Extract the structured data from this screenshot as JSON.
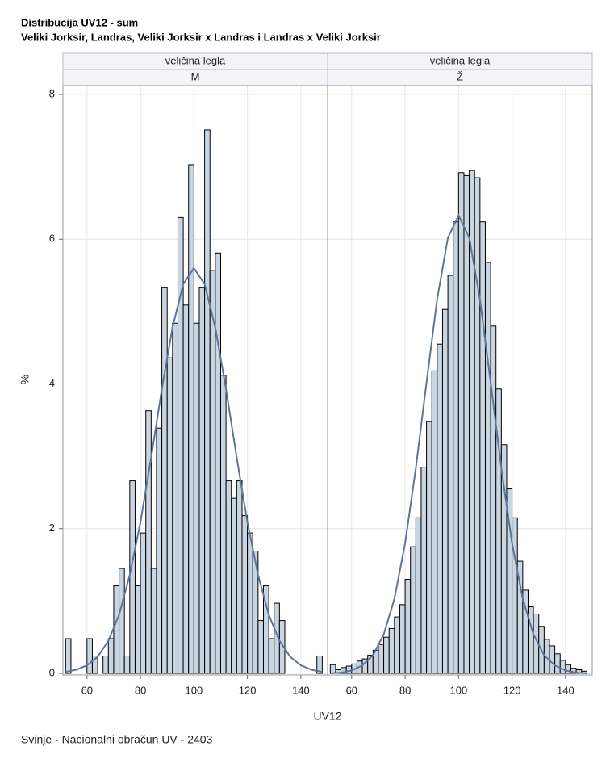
{
  "page": {
    "title": "Distribucija UV12 - sum",
    "subtitle": "Veliki Jorksir, Landras, Veliki Jorksir x Landras i Landras x Veliki Jorksir",
    "xlabel": "UV12",
    "ylabel": "%",
    "footnote": "Svinje - Nacionalni obračun UV - 2403"
  },
  "chart_data": [
    {
      "type": "histogram",
      "panel_header": "veličina legla",
      "panel_value": "M",
      "color": "#cad5e2",
      "curve_color": "#5d7596",
      "bins": [
        52,
        54,
        56,
        58,
        60,
        62,
        64,
        66,
        68,
        70,
        72,
        74,
        76,
        78,
        80,
        82,
        84,
        86,
        88,
        90,
        92,
        94,
        96,
        98,
        100,
        102,
        104,
        106,
        108,
        110,
        112,
        114,
        116,
        118,
        120,
        122,
        124,
        126,
        128,
        130,
        132,
        134,
        136,
        138,
        140,
        142,
        144,
        146,
        148
      ],
      "values": [
        0.48,
        0,
        0,
        0,
        0.48,
        0.24,
        0,
        0.24,
        0.48,
        1.21,
        1.45,
        0.24,
        2.66,
        1.21,
        1.94,
        3.63,
        1.45,
        3.39,
        5.33,
        4.36,
        4.84,
        6.3,
        5.09,
        7.03,
        4.84,
        5.33,
        7.51,
        5.57,
        5.81,
        4.12,
        2.66,
        2.42,
        2.66,
        2.18,
        1.94,
        1.69,
        0.73,
        1.21,
        0.48,
        0.97,
        0.73,
        0,
        0,
        0,
        0,
        0,
        0,
        0.24
      ],
      "curve": {
        "x": [
          52,
          56,
          60,
          64,
          68,
          72,
          76,
          80,
          84,
          88,
          92,
          96,
          100,
          104,
          108,
          112,
          116,
          120,
          124,
          128,
          132,
          136,
          140,
          144,
          148
        ],
        "values": [
          0.02,
          0.05,
          0.11,
          0.23,
          0.45,
          0.81,
          1.36,
          2.09,
          2.98,
          3.93,
          4.78,
          5.38,
          5.6,
          5.38,
          4.78,
          3.93,
          2.98,
          2.09,
          1.36,
          0.81,
          0.45,
          0.23,
          0.11,
          0.05,
          0.02
        ]
      },
      "xlim": [
        51,
        150
      ],
      "xticks": [
        60,
        80,
        100,
        120,
        140
      ],
      "ylim": [
        0,
        8
      ],
      "yticks": [
        0,
        2,
        4,
        6,
        8
      ],
      "grid": true
    },
    {
      "type": "histogram",
      "panel_header": "veličina legla",
      "panel_value": "Ž",
      "color": "#cad5e2",
      "curve_color": "#5d7596",
      "bins": [
        52,
        54,
        56,
        58,
        60,
        62,
        64,
        66,
        68,
        70,
        72,
        74,
        76,
        78,
        80,
        82,
        84,
        86,
        88,
        90,
        92,
        94,
        96,
        98,
        100,
        102,
        104,
        106,
        108,
        110,
        112,
        114,
        116,
        118,
        120,
        122,
        124,
        126,
        128,
        130,
        132,
        134,
        136,
        138,
        140,
        142,
        144,
        146,
        148
      ],
      "values": [
        0.12,
        0.05,
        0.08,
        0.1,
        0.13,
        0.17,
        0.2,
        0.25,
        0.32,
        0.4,
        0.5,
        0.62,
        0.78,
        0.95,
        1.3,
        1.75,
        2.15,
        2.85,
        3.48,
        4.18,
        4.55,
        5.03,
        5.5,
        6.24,
        6.92,
        6.88,
        6.95,
        6.85,
        6.24,
        5.68,
        4.8,
        3.93,
        3.16,
        2.55,
        2.15,
        1.55,
        1.15,
        0.92,
        0.82,
        0.65,
        0.47,
        0.38,
        0.27,
        0.18,
        0.12,
        0.07,
        0.05,
        0.03
      ],
      "curve": {
        "x": [
          52,
          56,
          60,
          64,
          68,
          72,
          76,
          80,
          84,
          88,
          92,
          96,
          100,
          104,
          108,
          112,
          116,
          120,
          124,
          128,
          132,
          136,
          140,
          144,
          148
        ],
        "values": [
          0,
          0.01,
          0.04,
          0.11,
          0.25,
          0.54,
          1.03,
          1.8,
          2.83,
          4.02,
          5.17,
          6.02,
          6.33,
          6.02,
          5.17,
          4.02,
          2.83,
          1.8,
          1.03,
          0.54,
          0.25,
          0.11,
          0.04,
          0.01,
          0
        ]
      },
      "xlim": [
        51,
        150
      ],
      "xticks": [
        60,
        80,
        100,
        120,
        140
      ],
      "ylim": [
        0,
        8
      ],
      "yticks": [
        0,
        2,
        4,
        6,
        8
      ],
      "grid": true
    }
  ]
}
